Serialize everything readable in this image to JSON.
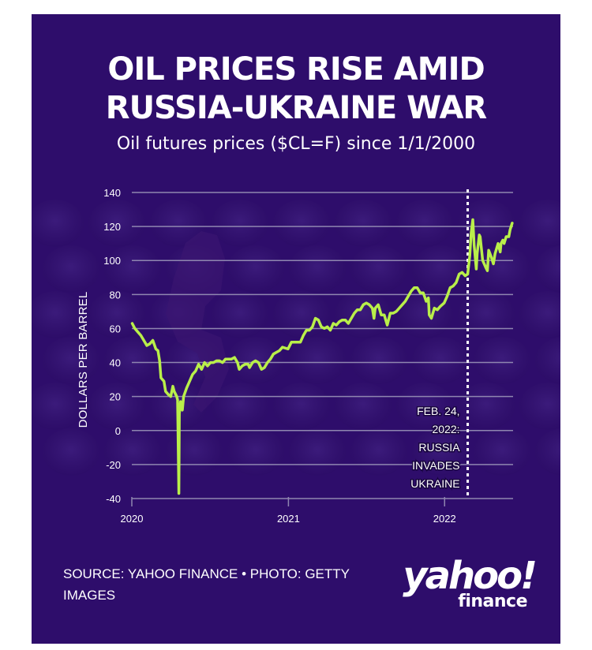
{
  "title_line1": "OIL PRICES RISE AMID",
  "title_line2": "RUSSIA-UKRAINE WAR",
  "subtitle": "Oil futures prices ($CL=F) since 1/1/2000",
  "source": "SOURCE: YAHOO FINANCE • PHOTO: GETTY IMAGES",
  "brand": {
    "wordmark": "yahoo!",
    "sub": "finance"
  },
  "colors": {
    "background": "#2e0d6b",
    "line": "#b9ef4a",
    "grid": "#8f86b0",
    "text": "#ffffff"
  },
  "chart_data": {
    "type": "line",
    "ylabel": "DOLLARS PER BARREL",
    "ylim": [
      -40,
      140
    ],
    "yticks": [
      140,
      120,
      100,
      80,
      60,
      40,
      20,
      0,
      -20,
      -40
    ],
    "xlim": [
      "2020-01-01",
      "2022-06-10"
    ],
    "xticks": [
      {
        "label": "2020",
        "date": "2020-01-01"
      },
      {
        "label": "2021",
        "date": "2021-01-01"
      },
      {
        "label": "2022",
        "date": "2022-01-01"
      }
    ],
    "grid": true,
    "annotation": {
      "date": "2022-02-24",
      "lines": [
        "FEB. 24,",
        "2022:",
        "RUSSIA",
        "INVADES",
        "UKRAINE"
      ]
    },
    "series": [
      {
        "points": [
          [
            "2020-01-02",
            63
          ],
          [
            "2020-01-08",
            60
          ],
          [
            "2020-01-15",
            58
          ],
          [
            "2020-01-22",
            56
          ],
          [
            "2020-01-29",
            53
          ],
          [
            "2020-02-05",
            50
          ],
          [
            "2020-02-12",
            51
          ],
          [
            "2020-02-19",
            53
          ],
          [
            "2020-02-26",
            48
          ],
          [
            "2020-03-02",
            47
          ],
          [
            "2020-03-06",
            41
          ],
          [
            "2020-03-09",
            31
          ],
          [
            "2020-03-16",
            29
          ],
          [
            "2020-03-20",
            23
          ],
          [
            "2020-03-27",
            21
          ],
          [
            "2020-04-01",
            20
          ],
          [
            "2020-04-06",
            26
          ],
          [
            "2020-04-09",
            23
          ],
          [
            "2020-04-15",
            20
          ],
          [
            "2020-04-17",
            18
          ],
          [
            "2020-04-20",
            -37
          ],
          [
            "2020-04-21",
            10
          ],
          [
            "2020-04-24",
            17
          ],
          [
            "2020-04-28",
            12
          ],
          [
            "2020-05-01",
            20
          ],
          [
            "2020-05-08",
            25
          ],
          [
            "2020-05-15",
            29
          ],
          [
            "2020-05-22",
            33
          ],
          [
            "2020-05-29",
            35
          ],
          [
            "2020-06-05",
            39
          ],
          [
            "2020-06-12",
            36
          ],
          [
            "2020-06-19",
            40
          ],
          [
            "2020-06-26",
            38
          ],
          [
            "2020-07-03",
            40
          ],
          [
            "2020-07-10",
            40
          ],
          [
            "2020-07-17",
            41
          ],
          [
            "2020-07-24",
            41
          ],
          [
            "2020-07-31",
            40
          ],
          [
            "2020-08-07",
            42
          ],
          [
            "2020-08-14",
            42
          ],
          [
            "2020-08-21",
            42
          ],
          [
            "2020-08-28",
            43
          ],
          [
            "2020-09-04",
            40
          ],
          [
            "2020-09-08",
            36
          ],
          [
            "2020-09-15",
            38
          ],
          [
            "2020-09-22",
            39
          ],
          [
            "2020-09-29",
            39
          ],
          [
            "2020-10-02",
            37
          ],
          [
            "2020-10-09",
            40
          ],
          [
            "2020-10-16",
            41
          ],
          [
            "2020-10-23",
            40
          ],
          [
            "2020-10-30",
            36
          ],
          [
            "2020-11-06",
            37
          ],
          [
            "2020-11-13",
            40
          ],
          [
            "2020-11-20",
            42
          ],
          [
            "2020-11-27",
            45
          ],
          [
            "2020-12-04",
            46
          ],
          [
            "2020-12-11",
            47
          ],
          [
            "2020-12-18",
            49
          ],
          [
            "2020-12-31",
            48
          ],
          [
            "2021-01-08",
            52
          ],
          [
            "2021-01-15",
            52
          ],
          [
            "2021-01-22",
            52
          ],
          [
            "2021-01-29",
            52
          ],
          [
            "2021-02-05",
            56
          ],
          [
            "2021-02-12",
            59
          ],
          [
            "2021-02-19",
            59
          ],
          [
            "2021-02-26",
            61
          ],
          [
            "2021-03-05",
            66
          ],
          [
            "2021-03-12",
            65
          ],
          [
            "2021-03-19",
            61
          ],
          [
            "2021-03-26",
            60
          ],
          [
            "2021-04-02",
            61
          ],
          [
            "2021-04-09",
            59
          ],
          [
            "2021-04-16",
            63
          ],
          [
            "2021-04-23",
            62
          ],
          [
            "2021-04-30",
            64
          ],
          [
            "2021-05-07",
            65
          ],
          [
            "2021-05-14",
            65
          ],
          [
            "2021-05-21",
            63
          ],
          [
            "2021-05-28",
            66
          ],
          [
            "2021-06-04",
            69
          ],
          [
            "2021-06-11",
            71
          ],
          [
            "2021-06-18",
            71
          ],
          [
            "2021-06-25",
            74
          ],
          [
            "2021-07-02",
            75
          ],
          [
            "2021-07-09",
            74
          ],
          [
            "2021-07-16",
            72
          ],
          [
            "2021-07-20",
            66
          ],
          [
            "2021-07-23",
            72
          ],
          [
            "2021-07-30",
            74
          ],
          [
            "2021-08-06",
            68
          ],
          [
            "2021-08-13",
            68
          ],
          [
            "2021-08-20",
            62
          ],
          [
            "2021-08-27",
            69
          ],
          [
            "2021-09-03",
            69
          ],
          [
            "2021-09-10",
            70
          ],
          [
            "2021-09-17",
            72
          ],
          [
            "2021-09-24",
            74
          ],
          [
            "2021-10-01",
            76
          ],
          [
            "2021-10-08",
            79
          ],
          [
            "2021-10-15",
            82
          ],
          [
            "2021-10-22",
            84
          ],
          [
            "2021-10-29",
            84
          ],
          [
            "2021-11-05",
            81
          ],
          [
            "2021-11-12",
            81
          ],
          [
            "2021-11-19",
            76
          ],
          [
            "2021-11-24",
            78
          ],
          [
            "2021-11-26",
            68
          ],
          [
            "2021-12-01",
            66
          ],
          [
            "2021-12-08",
            72
          ],
          [
            "2021-12-15",
            71
          ],
          [
            "2021-12-22",
            73
          ],
          [
            "2021-12-31",
            75
          ],
          [
            "2022-01-07",
            79
          ],
          [
            "2022-01-14",
            84
          ],
          [
            "2022-01-21",
            85
          ],
          [
            "2022-01-28",
            87
          ],
          [
            "2022-02-04",
            92
          ],
          [
            "2022-02-11",
            93
          ],
          [
            "2022-02-18",
            91
          ],
          [
            "2022-02-24",
            92
          ],
          [
            "2022-03-01",
            103
          ],
          [
            "2022-03-04",
            116
          ],
          [
            "2022-03-08",
            124
          ],
          [
            "2022-03-11",
            109
          ],
          [
            "2022-03-16",
            95
          ],
          [
            "2022-03-18",
            104
          ],
          [
            "2022-03-23",
            115
          ],
          [
            "2022-03-25",
            114
          ],
          [
            "2022-03-31",
            100
          ],
          [
            "2022-04-07",
            96
          ],
          [
            "2022-04-11",
            94
          ],
          [
            "2022-04-14",
            106
          ],
          [
            "2022-04-20",
            102
          ],
          [
            "2022-04-25",
            98
          ],
          [
            "2022-04-29",
            104
          ],
          [
            "2022-05-06",
            110
          ],
          [
            "2022-05-11",
            105
          ],
          [
            "2022-05-13",
            110
          ],
          [
            "2022-05-17",
            112
          ],
          [
            "2022-05-20",
            110
          ],
          [
            "2022-05-25",
            114
          ],
          [
            "2022-05-31",
            114
          ],
          [
            "2022-06-03",
            118
          ],
          [
            "2022-06-08",
            122
          ]
        ]
      }
    ]
  }
}
